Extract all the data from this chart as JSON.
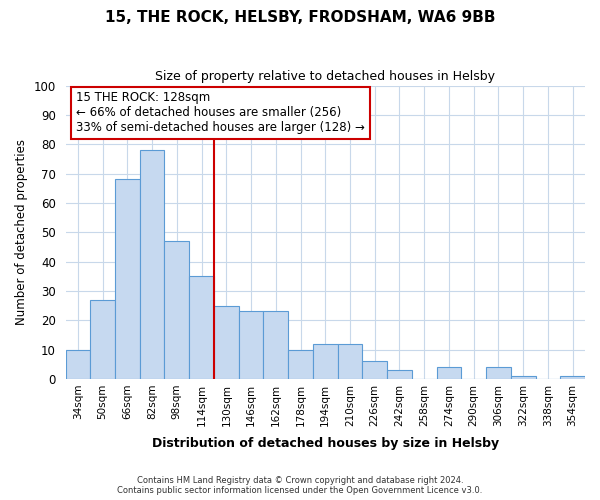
{
  "title1": "15, THE ROCK, HELSBY, FRODSHAM, WA6 9BB",
  "title2": "Size of property relative to detached houses in Helsby",
  "xlabel": "Distribution of detached houses by size in Helsby",
  "ylabel": "Number of detached properties",
  "bins": [
    "34sqm",
    "50sqm",
    "66sqm",
    "82sqm",
    "98sqm",
    "114sqm",
    "130sqm",
    "146sqm",
    "162sqm",
    "178sqm",
    "194sqm",
    "210sqm",
    "226sqm",
    "242sqm",
    "258sqm",
    "274sqm",
    "290sqm",
    "306sqm",
    "322sqm",
    "338sqm",
    "354sqm"
  ],
  "counts": [
    10,
    27,
    68,
    78,
    47,
    35,
    25,
    23,
    23,
    10,
    12,
    12,
    6,
    3,
    0,
    4,
    0,
    4,
    1,
    0,
    1
  ],
  "bar_color": "#c6d9f0",
  "bar_edge_color": "#5b9bd5",
  "property_line_color": "#cc0000",
  "annotation_line1": "15 THE ROCK: 128sqm",
  "annotation_line2": "← 66% of detached houses are smaller (256)",
  "annotation_line3": "33% of semi-detached houses are larger (128) →",
  "annotation_box_color": "#ffffff",
  "annotation_border_color": "#cc0000",
  "ylim": [
    0,
    100
  ],
  "footer1": "Contains HM Land Registry data © Crown copyright and database right 2024.",
  "footer2": "Contains public sector information licensed under the Open Government Licence v3.0.",
  "background_color": "#ffffff",
  "grid_color": "#c8d8ea"
}
